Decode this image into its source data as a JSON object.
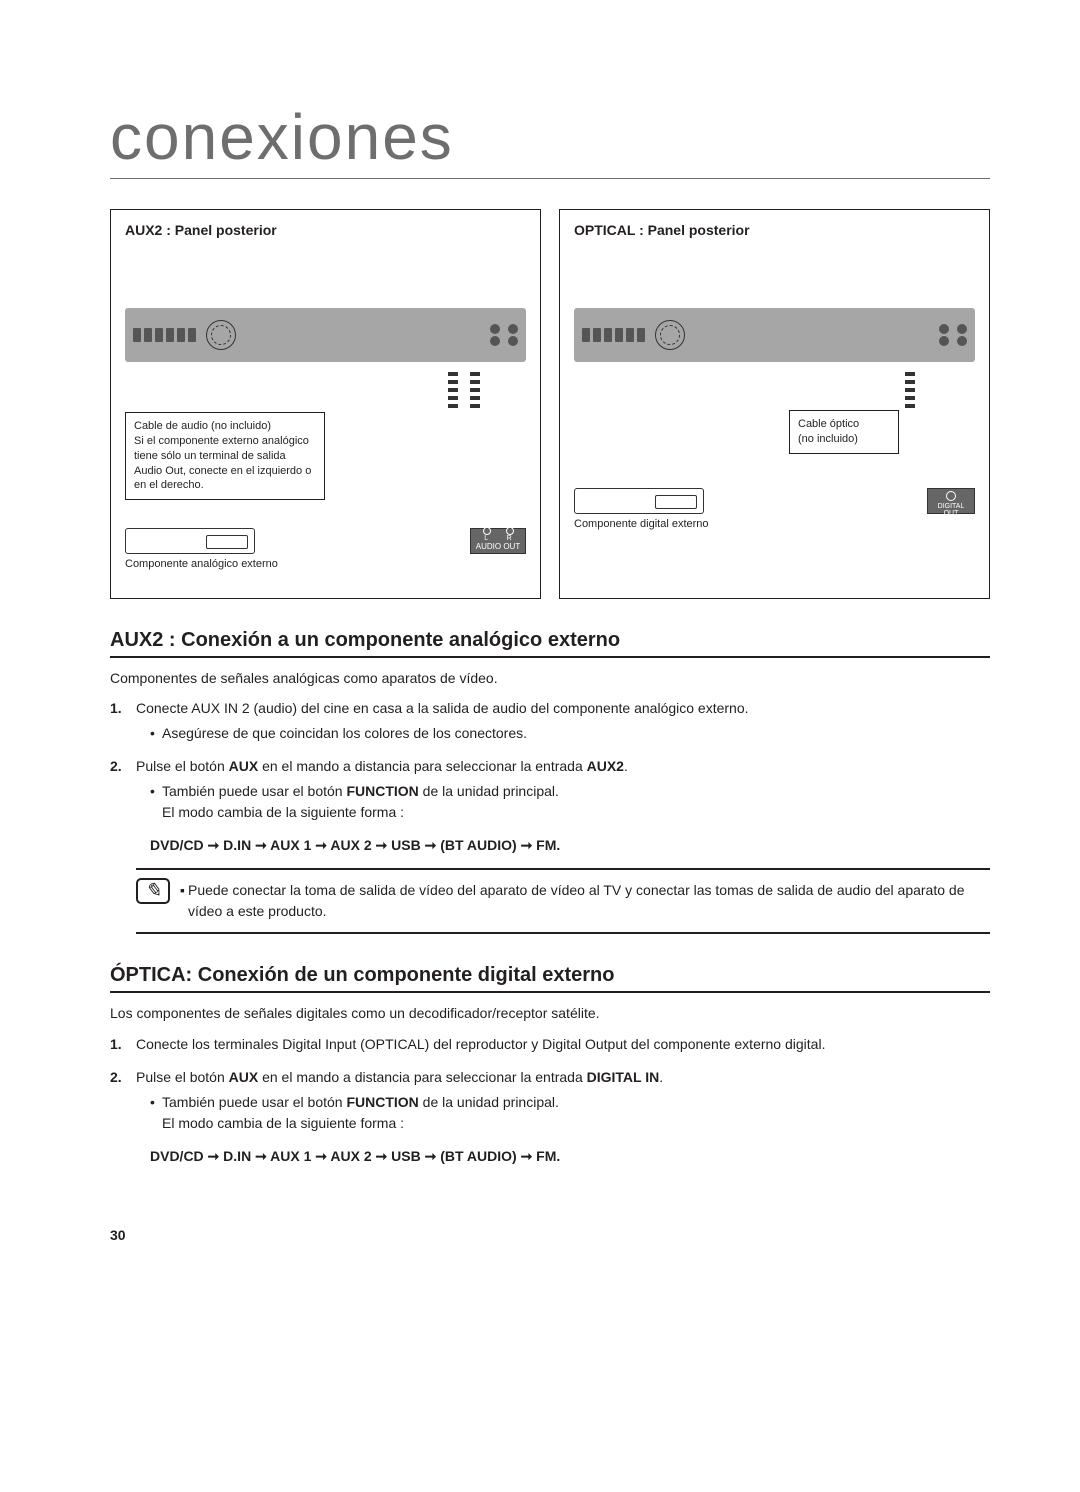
{
  "chapter_title": "conexiones",
  "diagram_left": {
    "title": "AUX2 : Panel posterior",
    "note": "Cable de audio (no incluido)\nSi el componente externo analógico tiene sólo un terminal de salida Audio Out, conecte en el izquierdo o en el derecho.",
    "ext_label": "Componente analógico externo",
    "jack_l": "L",
    "jack_r": "R",
    "audio_out": "AUDIO OUT"
  },
  "diagram_right": {
    "title": "OPTICAL : Panel posterior",
    "note": "Cable óptico\n(no incluido)",
    "ext_label": "Componente digital externo",
    "digital_out": "DIGITAL OUT"
  },
  "section1": {
    "heading": "AUX2 : Conexión a un componente analógico externo",
    "intro": "Componentes de señales analógicas como aparatos de vídeo.",
    "step1_num": "1.",
    "step1": "Conecte AUX IN 2 (audio) del cine en casa a la salida de audio del componente analógico externo.",
    "step1_sub1": "Asegúrese de que coincidan los colores de los conectores.",
    "step2_num": "2.",
    "step2_pre": "Pulse el botón ",
    "step2_b1": "AUX",
    "step2_mid": " en el mando a distancia para seleccionar la entrada ",
    "step2_b2": "AUX2",
    "step2_post": ".",
    "step2_sub1_pre": "También puede usar el botón ",
    "step2_sub1_b": "FUNCTION",
    "step2_sub1_post": " de la unidad principal.",
    "step2_sub1_line2": "El modo cambia de la siguiente forma :",
    "chain": [
      "DVD/CD",
      "D.IN",
      "AUX 1",
      "AUX 2",
      "USB",
      "BT AUDIO)",
      "FM"
    ],
    "info_note": "Puede conectar la toma de salida de vídeo del aparato de vídeo al TV y conectar las tomas de salida de audio del aparato de vídeo a este producto."
  },
  "section2": {
    "heading": "ÓPTICA: Conexión de un componente digital externo",
    "intro": "Los componentes de señales digitales como un decodificador/receptor satélite.",
    "step1_num": "1.",
    "step1": "Conecte los terminales Digital Input (OPTICAL) del reproductor y Digital Output del componente externo digital.",
    "step2_num": "2.",
    "step2_pre": "Pulse el botón ",
    "step2_b1": "AUX",
    "step2_mid": " en el mando a distancia para seleccionar la entrada ",
    "step2_b2": "DIGITAL IN",
    "step2_post": ".",
    "step2_sub1_pre": "También puede usar el botón ",
    "step2_sub1_b": "FUNCTION",
    "step2_sub1_post": " de la unidad principal.",
    "step2_sub1_line2": "El modo cambia de la siguiente forma :",
    "chain": [
      "DVD/CD",
      "D.IN",
      "AUX 1",
      "AUX 2",
      "USB",
      "BT AUDIO)",
      "FM"
    ]
  },
  "page_number": "30",
  "arrow_glyph": "➞"
}
